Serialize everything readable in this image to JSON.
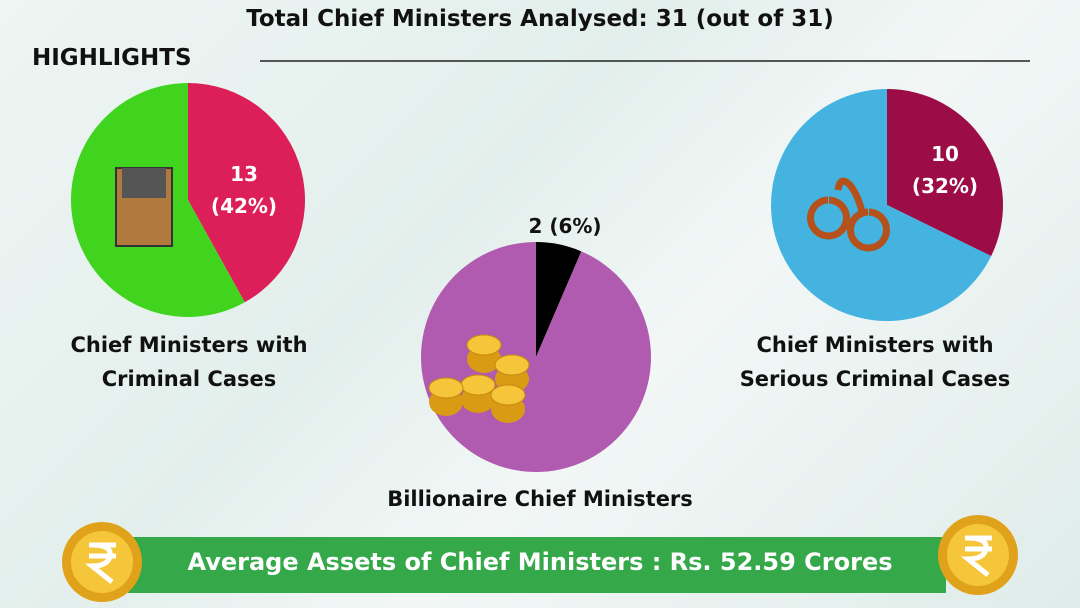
{
  "header": {
    "title": "Total Chief Ministers Analysed: 31 (out of 31)",
    "section": "HIGHLIGHTS"
  },
  "chart_data": [
    {
      "type": "pie",
      "title": "Chief Ministers with Criminal Cases",
      "values": [
        13,
        18
      ],
      "value_labels": [
        "13 (42%)",
        null
      ],
      "colors": [
        "#dc1f58",
        "#41d41e"
      ]
    },
    {
      "type": "pie",
      "title": "Billionaire Chief Ministers",
      "values": [
        2,
        29
      ],
      "value_labels": [
        "2 (6%)",
        null
      ],
      "colors": [
        "#000000",
        "#b05bb0"
      ]
    },
    {
      "type": "pie",
      "title": "Chief Ministers with Serious Criminal Cases",
      "values": [
        10,
        21
      ],
      "value_labels": [
        "10 (32%)",
        null
      ],
      "colors": [
        "#9c0d47",
        "#45b3e0"
      ]
    }
  ],
  "footer": {
    "banner": "Average Assets of Chief Ministers : Rs. 52.59 Crores"
  }
}
